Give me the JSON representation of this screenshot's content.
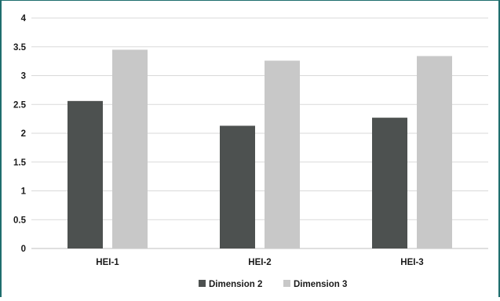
{
  "chart_data": {
    "type": "bar",
    "categories": [
      "HEI-1",
      "HEI-2",
      "HEI-3"
    ],
    "series": [
      {
        "name": "Dimension 2",
        "values": [
          2.56,
          2.13,
          2.27
        ],
        "color": "#4d5150"
      },
      {
        "name": "Dimension 3",
        "values": [
          3.45,
          3.26,
          3.34
        ],
        "color": "#c8c8c8"
      }
    ],
    "ylim": [
      0,
      4
    ],
    "yticks": [
      "0",
      "0.5",
      "1",
      "1.5",
      "2",
      "2.5",
      "3",
      "3.5",
      "4"
    ],
    "grid": true,
    "legend_position": "bottom-center",
    "gridline_color": "#d9d9d9",
    "title": "",
    "xlabel": "",
    "ylabel": ""
  }
}
